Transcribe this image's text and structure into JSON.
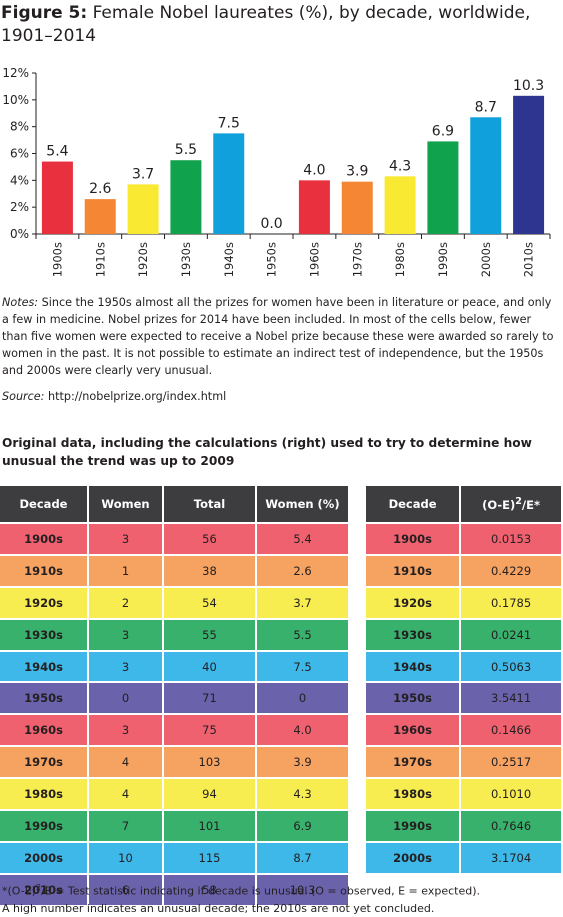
{
  "figure": {
    "title_lead": "Figure 5:",
    "title_text": " Female Nobel laureates (%), by decade, worldwide, 1901–2014"
  },
  "chart_data": {
    "type": "bar",
    "title": "Figure 5: Female Nobel laureates (%), by decade, worldwide, 1901–2014",
    "categories": [
      "1900s",
      "1910s",
      "1920s",
      "1930s",
      "1940s",
      "1950s",
      "1960s",
      "1970s",
      "1980s",
      "1990s",
      "2000s",
      "2010s"
    ],
    "values": [
      5.4,
      2.6,
      3.7,
      5.5,
      7.5,
      0.0,
      4.0,
      3.9,
      4.3,
      6.9,
      8.7,
      10.3
    ],
    "value_labels": [
      "5.4",
      "2.6",
      "3.7",
      "5.5",
      "7.5",
      "0.0",
      "4.0",
      "3.9",
      "4.3",
      "6.9",
      "8.7",
      "10.3"
    ],
    "yticks": [
      "0%",
      "2%",
      "4%",
      "6%",
      "8%",
      "10%",
      "12%"
    ],
    "ylim": [
      0,
      12
    ],
    "xlabel": "",
    "ylabel": "",
    "grid": false,
    "legend": "none",
    "bar_colors": [
      "#e8303f",
      "#f58634",
      "#f9e933",
      "#11a24e",
      "#10a0dc",
      "#58509e",
      "#e8303f",
      "#f58634",
      "#f9e933",
      "#11a24e",
      "#10a0dc",
      "#2d3590"
    ]
  },
  "notes": {
    "label": "Notes:",
    "text": " Since the 1950s almost all the prizes for women have been in literature or peace, and only a few in medicine. Nobel prizes for 2014 have been included. In most of the cells below, fewer than five women were expected to receive a Nobel prize because these were awarded so rarely to women in the past. It is not possible to estimate an indirect test of independence, but the 1950s and 2000s were clearly very unusual."
  },
  "source": {
    "label": "Source:",
    "text": "  http://nobelprize.org/index.html"
  },
  "tables_title": "Original data, including the calculations (right) used to try to determine how unusual the trend was up to 2009",
  "left_table": {
    "headers": [
      "Decade",
      "Women",
      "Total",
      "Women (%)"
    ],
    "rows": [
      {
        "decade": "1900s",
        "women": "3",
        "total": "56",
        "pct": "5.4",
        "color": "#f0616f"
      },
      {
        "decade": "1910s",
        "women": "1",
        "total": "38",
        "pct": "2.6",
        "color": "#f6a260"
      },
      {
        "decade": "1920s",
        "women": "2",
        "total": "54",
        "pct": "3.7",
        "color": "#f8ed50"
      },
      {
        "decade": "1930s",
        "women": "3",
        "total": "55",
        "pct": "5.5",
        "color": "#38b16c"
      },
      {
        "decade": "1940s",
        "women": "3",
        "total": "40",
        "pct": "7.5",
        "color": "#3db8e8"
      },
      {
        "decade": "1950s",
        "women": "0",
        "total": "71",
        "pct": "0",
        "color": "#6a63ab"
      },
      {
        "decade": "1960s",
        "women": "3",
        "total": "75",
        "pct": "4.0",
        "color": "#f0616f"
      },
      {
        "decade": "1970s",
        "women": "4",
        "total": "103",
        "pct": "3.9",
        "color": "#f6a260"
      },
      {
        "decade": "1980s",
        "women": "4",
        "total": "94",
        "pct": "4.3",
        "color": "#f8ed50"
      },
      {
        "decade": "1990s",
        "women": "7",
        "total": "101",
        "pct": "6.9",
        "color": "#38b16c"
      },
      {
        "decade": "2000s",
        "women": "10",
        "total": "115",
        "pct": "8.7",
        "color": "#3db8e8"
      },
      {
        "decade": "2010s",
        "women": "6",
        "total": "58",
        "pct": "10.3",
        "color": "#6a63ab"
      }
    ]
  },
  "right_table": {
    "header_decade": "Decade",
    "header_stat_main": "(O-E)",
    "header_stat_sup": "2",
    "header_stat_tail": "/E*",
    "rows": [
      {
        "decade": "1900s",
        "stat": "0.0153",
        "color": "#f0616f"
      },
      {
        "decade": "1910s",
        "stat": "0.4229",
        "color": "#f6a260"
      },
      {
        "decade": "1920s",
        "stat": "0.1785",
        "color": "#f8ed50"
      },
      {
        "decade": "1930s",
        "stat": "0.0241",
        "color": "#38b16c"
      },
      {
        "decade": "1940s",
        "stat": "0.5063",
        "color": "#3db8e8"
      },
      {
        "decade": "1950s",
        "stat": "3.5411",
        "color": "#6a63ab"
      },
      {
        "decade": "1960s",
        "stat": "0.1466",
        "color": "#f0616f"
      },
      {
        "decade": "1970s",
        "stat": "0.2517",
        "color": "#f6a260"
      },
      {
        "decade": "1980s",
        "stat": "0.1010",
        "color": "#f8ed50"
      },
      {
        "decade": "1990s",
        "stat": "0.7646",
        "color": "#38b16c"
      },
      {
        "decade": "2000s",
        "stat": "3.1704",
        "color": "#3db8e8"
      }
    ]
  },
  "footnote": {
    "pre": "*(O-E)",
    "sup": "2",
    "post": "/E = Test statistic indicating if decade is unusual (O = observed, E = expected).",
    "line2": "A high number indicates an unusual decade; the 2010s are not yet concluded."
  }
}
